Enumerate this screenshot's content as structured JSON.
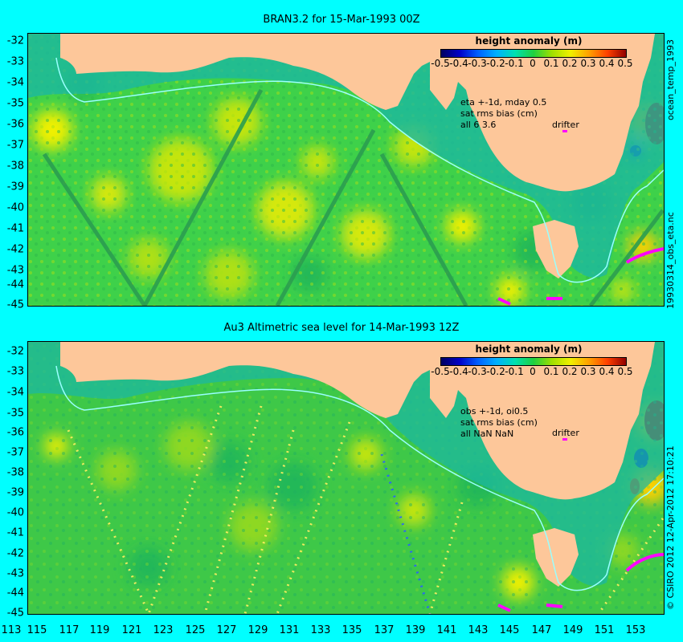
{
  "panels": [
    {
      "title": "BRAN3.2 for 15-Mar-1993 00Z",
      "stats": [
        "eta +-1d, mday 0.5",
        "sat rms bias (cm)",
        "all 6 3.6"
      ],
      "drifter_label": "drifter",
      "side_label": "ocean_temp_1993"
    },
    {
      "title": "Au3 Altimetric sea level  for 14-Mar-1993 12Z",
      "stats": [
        "obs +-1d, oi0.5",
        "sat rms bias (cm)",
        "all NaN NaN"
      ],
      "drifter_label": "drifter",
      "side_label": ""
    }
  ],
  "legend": {
    "title": "height anomaly (m)",
    "ticks": [
      "-0.5",
      "-0.4",
      "-0.3",
      "-0.2",
      "-0.1",
      "0",
      "0.1",
      "0.2",
      "0.3",
      "0.4",
      "0.5"
    ]
  },
  "lat_labels": [
    "-32",
    "-33",
    "-34",
    "-35",
    "-36",
    "-37",
    "-38",
    "-39",
    "-40",
    "-41",
    "-42",
    "-43",
    "-44",
    "-45"
  ],
  "lon_labels": [
    "113",
    "115",
    "117",
    "119",
    "121",
    "123",
    "125",
    "127",
    "129",
    "131",
    "133",
    "135",
    "137",
    "139",
    "141",
    "143",
    "145",
    "147",
    "149",
    "151",
    "153"
  ],
  "right_side_labels": [
    "19930314_obs_eta.nc",
    "© CSIRO 2012  12-Apr-2012 17:10:21"
  ],
  "colors": {
    "land": "#fdc79a",
    "ocean_base": "#3ed14a",
    "background": "#00ffff",
    "drifter": "#ff00ff"
  }
}
